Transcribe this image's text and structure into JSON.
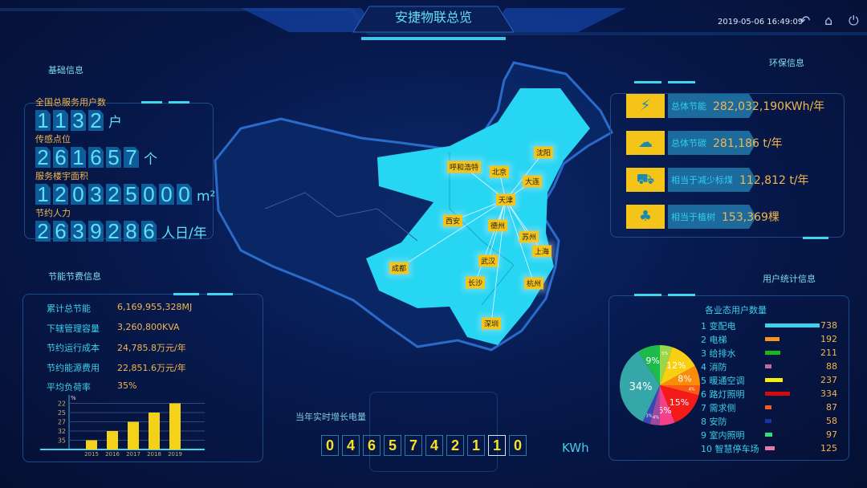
{
  "header": {
    "title": "安捷物联总览",
    "datetime": "2019-05-06 16:49:09",
    "icons": [
      "back-icon",
      "home-icon",
      "power-icon"
    ]
  },
  "basic": {
    "title": "基础信息",
    "items": [
      {
        "label": "全国总服务用户数",
        "value": "1132",
        "unit": "户"
      },
      {
        "label": "传感点位",
        "value": "261657",
        "unit": "个"
      },
      {
        "label": "服务楼宇面积",
        "value": "120325000",
        "unit": "m²"
      },
      {
        "label": "节约人力",
        "value": "2639286",
        "unit": "人日/年"
      }
    ]
  },
  "saving": {
    "title": "节能节费信息",
    "rows": [
      {
        "k": "累计总节能",
        "v": "6,169,955,328MJ"
      },
      {
        "k": "下辖管理容量",
        "v": "3,260,800KVA"
      },
      {
        "k": "节约运行成本",
        "v": "24,785.8万元/年"
      },
      {
        "k": "节约能源费用",
        "v": "22,851.6万元/年"
      },
      {
        "k": "平均负荷率",
        "v": "35%"
      }
    ]
  },
  "chart_data": [
    {
      "type": "bar",
      "title": "",
      "ylabel": "%",
      "categories": [
        "2015",
        "2016",
        "2017",
        "2018",
        "2019"
      ],
      "values": [
        22,
        25,
        27,
        32,
        35
      ],
      "yticks": [
        22,
        25,
        27,
        32,
        35
      ],
      "bar_color": "#f5d21a",
      "grid": true
    },
    {
      "type": "pie",
      "title": "各业态用户数量",
      "labels": [
        "",
        "",
        "",
        "",
        "",
        "",
        "",
        "",
        "",
        ""
      ],
      "slices": [
        {
          "pct": 5,
          "color": "#9ad84a"
        },
        {
          "pct": 12,
          "color": "#f9cf12"
        },
        {
          "pct": 8,
          "color": "#fb8c0a"
        },
        {
          "pct": 4,
          "color": "#fa5a12"
        },
        {
          "pct": 15,
          "color": "#f51a1a"
        },
        {
          "pct": 6,
          "color": "#f4408a"
        },
        {
          "pct": 4,
          "color": "#9b4aa0"
        },
        {
          "pct": 3,
          "color": "#3846b8"
        },
        {
          "pct": 34,
          "color": "#35a7a8"
        },
        {
          "pct": 9,
          "color": "#1dbb4c"
        }
      ]
    }
  ],
  "env": {
    "title": "环保信息",
    "items": [
      {
        "icon": "energy-drop-icon",
        "k": "总体节能",
        "v": "282,032,190KWh/年"
      },
      {
        "icon": "carbon-cloud-icon",
        "k": "总体节碳",
        "v": "281,186 t/年"
      },
      {
        "icon": "coal-cart-icon",
        "k": "相当于减少标煤",
        "v": "112,812 t/年"
      },
      {
        "icon": "tree-icon",
        "k": "相当于植树",
        "v": "153,369棵"
      }
    ]
  },
  "users": {
    "title": "用户统计信息",
    "subtitle": "各业态用户数量",
    "items": [
      {
        "name": "1 变配电",
        "count": "738",
        "n": 738,
        "color": "#3fd0ea"
      },
      {
        "name": "2 电梯",
        "count": "192",
        "n": 192,
        "color": "#f7941d"
      },
      {
        "name": "3 给排水",
        "count": "211",
        "n": 211,
        "color": "#16b81c"
      },
      {
        "name": "4 消防",
        "count": "88",
        "n": 88,
        "color": "#c06aa8"
      },
      {
        "name": "5 暖通空调",
        "count": "237",
        "n": 237,
        "color": "#f5ee10"
      },
      {
        "name": "6 路灯照明",
        "count": "334",
        "n": 334,
        "color": "#d40b0b"
      },
      {
        "name": "7 需求侧",
        "count": "87",
        "n": 87,
        "color": "#f55e1a"
      },
      {
        "name": "8 安防",
        "count": "58",
        "n": 58,
        "color": "#1a30a8"
      },
      {
        "name": "9 室内照明",
        "count": "97",
        "n": 97,
        "color": "#32e07a"
      },
      {
        "name": "10 智慧停车场",
        "count": "125",
        "n": 125,
        "color": "#e77aa8"
      }
    ]
  },
  "map": {
    "hub": "天津",
    "cities": [
      "呼和浩特",
      "北京",
      "沈阳",
      "大连",
      "天津",
      "西安",
      "德州",
      "苏州",
      "上海",
      "成都",
      "武汉",
      "长沙",
      "杭州",
      "深圳"
    ]
  },
  "counter": {
    "label": "当年实时增长电量",
    "digits": "0465742110",
    "unit": "KWh"
  }
}
